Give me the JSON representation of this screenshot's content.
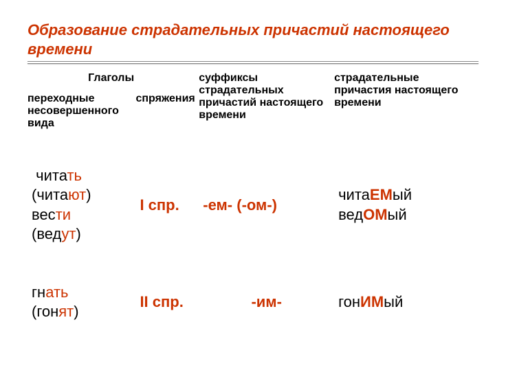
{
  "title": "Образование страдательных причастий настоящего времени",
  "colors": {
    "accent": "#cc3300",
    "text": "#000000",
    "underline": "#888888",
    "background": "#ffffff"
  },
  "headers": {
    "group1": "Глаголы",
    "col1": "переходные несовершенного вида",
    "col2": "спряжения",
    "col3": "суффиксы страдательных причастий настоящего времени",
    "col4": "страдательные причастия настоящего времени"
  },
  "rows": [
    {
      "verbs": [
        {
          "stem1": "чита",
          "end1": "ть",
          "stem2": "чита",
          "end2": "ют"
        },
        {
          "stem1": "вес",
          "end1": "ти",
          "stem2": "вед",
          "end2": "ут"
        }
      ],
      "conj": "I спр.",
      "suffix": "-ем- (-ом-)",
      "results": [
        {
          "pre": "чита",
          "suf": "ЕМ",
          "post": "ый"
        },
        {
          "pre": "вед",
          "suf": "ОМ",
          "post": "ый"
        }
      ]
    },
    {
      "verbs": [
        {
          "stem1": "гн",
          "end1": "ать",
          "stem2": "гон",
          "end2": "ят"
        }
      ],
      "conj": "II спр.",
      "suffix": "-им-",
      "results": [
        {
          "pre": "гон",
          "suf": "ИМ",
          "post": "ый"
        }
      ]
    }
  ]
}
